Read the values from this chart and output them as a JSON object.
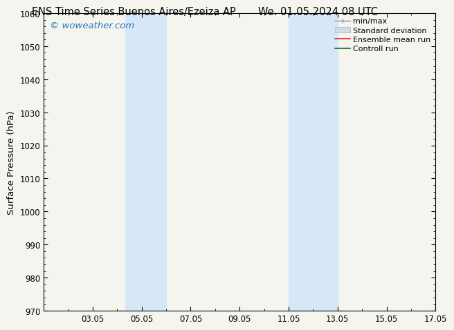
{
  "title_left": "ENS Time Series Buenos Aires/Ezeiza AP",
  "title_right": "We. 01.05.2024 08 UTC",
  "ylabel": "Surface Pressure (hPa)",
  "ylim": [
    970,
    1060
  ],
  "yticks": [
    970,
    980,
    990,
    1000,
    1010,
    1020,
    1030,
    1040,
    1050,
    1060
  ],
  "xlim": [
    1.0,
    17.0
  ],
  "xtick_labels": [
    "03.05",
    "05.05",
    "07.05",
    "09.05",
    "11.05",
    "13.05",
    "15.05",
    "17.05"
  ],
  "xtick_days": [
    3,
    5,
    7,
    9,
    11,
    13,
    15,
    17
  ],
  "shaded_bands": [
    {
      "x_start_day": 4.33,
      "x_end_day": 6.0
    },
    {
      "x_start_day": 11.0,
      "x_end_day": 13.0
    }
  ],
  "shade_color": "#d6e8f7",
  "watermark_text": "© woweather.com",
  "watermark_color": "#2878c0",
  "bg_color": "#f5f5f0",
  "axes_bg_color": "#f5f5f0",
  "title_fontsize": 10.5,
  "tick_fontsize": 8.5,
  "label_fontsize": 9.5,
  "legend_fontsize": 8.0,
  "watermark_fontsize": 9.5
}
